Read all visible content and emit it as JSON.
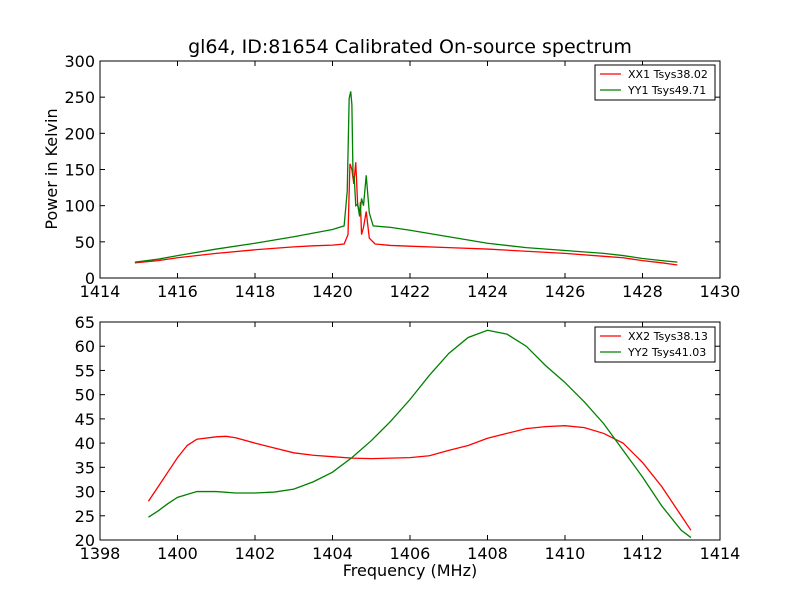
{
  "chart_data": [
    {
      "type": "line",
      "title": "gl64, ID:81654 Calibrated On-source spectrum",
      "xlabel": "",
      "ylabel": "Power in Kelvin",
      "xlim": [
        1414,
        1430
      ],
      "ylim": [
        0,
        300
      ],
      "xticks": [
        1414,
        1416,
        1418,
        1420,
        1422,
        1424,
        1426,
        1428,
        1430
      ],
      "yticks": [
        0,
        50,
        100,
        150,
        200,
        250,
        300
      ],
      "grid": false,
      "legend": "top-right",
      "series": [
        {
          "name": "XX1 Tsys38.02",
          "color": "#ff0000",
          "points": [
            [
              1414.9,
              21
            ],
            [
              1415.5,
              24
            ],
            [
              1416,
              28
            ],
            [
              1417,
              34
            ],
            [
              1418,
              39
            ],
            [
              1419,
              43
            ],
            [
              1419.5,
              44.5
            ],
            [
              1420,
              45.5
            ],
            [
              1420.3,
              47
            ],
            [
              1420.4,
              60
            ],
            [
              1420.45,
              158
            ],
            [
              1420.5,
              150
            ],
            [
              1420.55,
              130
            ],
            [
              1420.6,
              160
            ],
            [
              1420.65,
              100
            ],
            [
              1420.7,
              90
            ],
            [
              1420.72,
              105
            ],
            [
              1420.75,
              60
            ],
            [
              1420.8,
              70
            ],
            [
              1420.87,
              92
            ],
            [
              1420.95,
              55
            ],
            [
              1421.1,
              47
            ],
            [
              1421.5,
              45
            ],
            [
              1422,
              44
            ],
            [
              1423,
              42
            ],
            [
              1424,
              40
            ],
            [
              1425,
              37
            ],
            [
              1426,
              34
            ],
            [
              1427,
              30
            ],
            [
              1427.5,
              28
            ],
            [
              1428,
              24
            ],
            [
              1428.5,
              21
            ],
            [
              1428.9,
              18
            ]
          ]
        },
        {
          "name": "YY1 Tsys49.71",
          "color": "#008000",
          "points": [
            [
              1414.9,
              22
            ],
            [
              1415.5,
              26
            ],
            [
              1416,
              31
            ],
            [
              1417,
              40
            ],
            [
              1418,
              48
            ],
            [
              1419,
              57
            ],
            [
              1419.5,
              62
            ],
            [
              1420,
              67
            ],
            [
              1420.3,
              72
            ],
            [
              1420.38,
              120
            ],
            [
              1420.43,
              248
            ],
            [
              1420.47,
              258
            ],
            [
              1420.5,
              240
            ],
            [
              1420.53,
              140
            ],
            [
              1420.56,
              140
            ],
            [
              1420.6,
              100
            ],
            [
              1420.65,
              102
            ],
            [
              1420.7,
              85
            ],
            [
              1420.75,
              110
            ],
            [
              1420.8,
              100
            ],
            [
              1420.87,
              142
            ],
            [
              1420.95,
              90
            ],
            [
              1421.05,
              72
            ],
            [
              1421.5,
              70
            ],
            [
              1422,
              66
            ],
            [
              1423,
              57
            ],
            [
              1424,
              48
            ],
            [
              1425,
              42
            ],
            [
              1426,
              38
            ],
            [
              1427,
              34
            ],
            [
              1427.5,
              31
            ],
            [
              1428,
              27
            ],
            [
              1428.5,
              24
            ],
            [
              1428.9,
              22
            ]
          ]
        }
      ]
    },
    {
      "type": "line",
      "title": "",
      "xlabel": "Frequency (MHz)",
      "ylabel": "",
      "xlim": [
        1398,
        1414
      ],
      "ylim": [
        20,
        65
      ],
      "xticks": [
        1398,
        1400,
        1402,
        1404,
        1406,
        1408,
        1410,
        1412,
        1414
      ],
      "yticks": [
        20,
        25,
        30,
        35,
        40,
        45,
        50,
        55,
        60,
        65
      ],
      "grid": false,
      "legend": "top-right",
      "series": [
        {
          "name": "XX2 Tsys38.13",
          "color": "#ff0000",
          "points": [
            [
              1399.25,
              28
            ],
            [
              1399.5,
              31
            ],
            [
              1399.75,
              34
            ],
            [
              1400,
              37
            ],
            [
              1400.25,
              39.5
            ],
            [
              1400.5,
              40.8
            ],
            [
              1401,
              41.3
            ],
            [
              1401.25,
              41.4
            ],
            [
              1401.5,
              41.1
            ],
            [
              1402,
              40
            ],
            [
              1402.5,
              39
            ],
            [
              1403,
              38
            ],
            [
              1403.5,
              37.5
            ],
            [
              1404,
              37.2
            ],
            [
              1404.5,
              36.9
            ],
            [
              1405,
              36.8
            ],
            [
              1405.5,
              36.9
            ],
            [
              1406,
              37
            ],
            [
              1406.5,
              37.4
            ],
            [
              1407,
              38.5
            ],
            [
              1407.5,
              39.5
            ],
            [
              1408,
              41
            ],
            [
              1408.5,
              42
            ],
            [
              1409,
              43
            ],
            [
              1409.5,
              43.4
            ],
            [
              1410,
              43.6
            ],
            [
              1410.5,
              43.2
            ],
            [
              1411,
              42
            ],
            [
              1411.5,
              40
            ],
            [
              1412,
              36
            ],
            [
              1412.5,
              31
            ],
            [
              1413,
              25
            ],
            [
              1413.25,
              22
            ]
          ]
        },
        {
          "name": "YY2 Tsys41.03",
          "color": "#008000",
          "points": [
            [
              1399.25,
              24.7
            ],
            [
              1399.5,
              26
            ],
            [
              1399.75,
              27.5
            ],
            [
              1400,
              28.8
            ],
            [
              1400.5,
              30
            ],
            [
              1401,
              30
            ],
            [
              1401.5,
              29.7
            ],
            [
              1402,
              29.7
            ],
            [
              1402.5,
              29.9
            ],
            [
              1403,
              30.5
            ],
            [
              1403.5,
              32
            ],
            [
              1404,
              34
            ],
            [
              1404.5,
              37
            ],
            [
              1405,
              40.5
            ],
            [
              1405.5,
              44.5
            ],
            [
              1406,
              49
            ],
            [
              1406.5,
              54
            ],
            [
              1407,
              58.5
            ],
            [
              1407.5,
              61.8
            ],
            [
              1408,
              63.3
            ],
            [
              1408.5,
              62.5
            ],
            [
              1409,
              60
            ],
            [
              1409.5,
              56
            ],
            [
              1410,
              52.5
            ],
            [
              1410.5,
              48.5
            ],
            [
              1411,
              44
            ],
            [
              1411.5,
              38.5
            ],
            [
              1412,
              33
            ],
            [
              1412.5,
              27
            ],
            [
              1413,
              22
            ],
            [
              1413.25,
              20.5
            ]
          ]
        }
      ]
    }
  ]
}
